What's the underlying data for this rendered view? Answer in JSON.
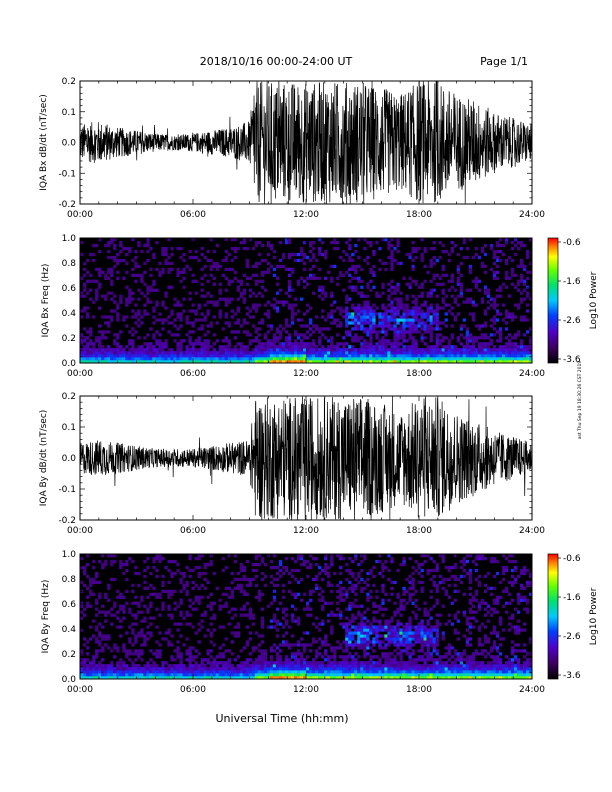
{
  "header": {
    "title": "2018/10/16  00:00-24:00 UT",
    "page": "Page 1/1"
  },
  "footer": {
    "xlabel": "Universal Time (hh:mm)",
    "stamp": "ast Thu Sep 19 18:30:26 CST 2019"
  },
  "chart_data": [
    {
      "type": "line",
      "ylabel": "IQA Bx dB/dt (nT/sec)",
      "xlim": [
        0,
        24
      ],
      "ylim": [
        -0.2,
        0.2
      ],
      "xticks": [
        "00:00",
        "06:00",
        "12:00",
        "18:00",
        "24:00"
      ],
      "yticks": [
        "-0.2",
        "-0.1",
        "0.0",
        "0.1",
        "0.2"
      ],
      "x": [
        0,
        1,
        2,
        3,
        4,
        5,
        6,
        7,
        8,
        9,
        9.3,
        10,
        11,
        12,
        13,
        14,
        15,
        16,
        17,
        18,
        19,
        20,
        21,
        22,
        23,
        24
      ],
      "y_envelope": [
        0.06,
        0.07,
        0.05,
        0.04,
        0.03,
        0.025,
        0.03,
        0.04,
        0.05,
        0.07,
        0.2,
        0.2,
        0.2,
        0.2,
        0.2,
        0.2,
        0.2,
        0.18,
        0.16,
        0.2,
        0.2,
        0.16,
        0.14,
        0.1,
        0.08,
        0.06
      ]
    },
    {
      "type": "heatmap",
      "ylabel": "IQA Bx Freq (Hz)",
      "xlim": [
        0,
        24
      ],
      "ylim": [
        0,
        1.0
      ],
      "xticks": [
        "00:00",
        "06:00",
        "12:00",
        "18:00",
        "24:00"
      ],
      "yticks": [
        "0.0",
        "0.2",
        "0.4",
        "0.6",
        "0.8",
        "1.0"
      ],
      "colorbar": {
        "label": "Log10 Power",
        "range": [
          -3.6,
          -0.6
        ],
        "ticks": [
          "-0.6",
          "-1.6",
          "-2.6",
          "-3.6"
        ]
      }
    },
    {
      "type": "line",
      "ylabel": "IQA By dB/dt (nT/sec)",
      "xlim": [
        0,
        24
      ],
      "ylim": [
        -0.2,
        0.2
      ],
      "xticks": [
        "00:00",
        "06:00",
        "12:00",
        "18:00",
        "24:00"
      ],
      "yticks": [
        "-0.2",
        "-0.1",
        "0.0",
        "0.1",
        "0.2"
      ],
      "x": [
        0,
        1,
        2,
        3,
        4,
        5,
        6,
        7,
        8,
        9,
        9.3,
        10,
        11,
        12,
        13,
        14,
        15,
        16,
        17,
        18,
        19,
        20,
        21,
        22,
        23,
        24
      ],
      "y_envelope": [
        0.05,
        0.06,
        0.05,
        0.04,
        0.03,
        0.03,
        0.03,
        0.04,
        0.05,
        0.06,
        0.2,
        0.2,
        0.2,
        0.2,
        0.2,
        0.2,
        0.2,
        0.18,
        0.15,
        0.2,
        0.2,
        0.15,
        0.12,
        0.09,
        0.07,
        0.05
      ]
    },
    {
      "type": "heatmap",
      "ylabel": "IQA By Freq (Hz)",
      "xlim": [
        0,
        24
      ],
      "ylim": [
        0,
        1.0
      ],
      "xticks": [
        "00:00",
        "06:00",
        "12:00",
        "18:00",
        "24:00"
      ],
      "yticks": [
        "0.0",
        "0.2",
        "0.4",
        "0.6",
        "0.8",
        "1.0"
      ],
      "colorbar": {
        "label": "Log10 Power",
        "range": [
          -3.6,
          -0.6
        ],
        "ticks": [
          "-0.6",
          "-1.6",
          "-2.6",
          "-3.6"
        ]
      }
    }
  ]
}
